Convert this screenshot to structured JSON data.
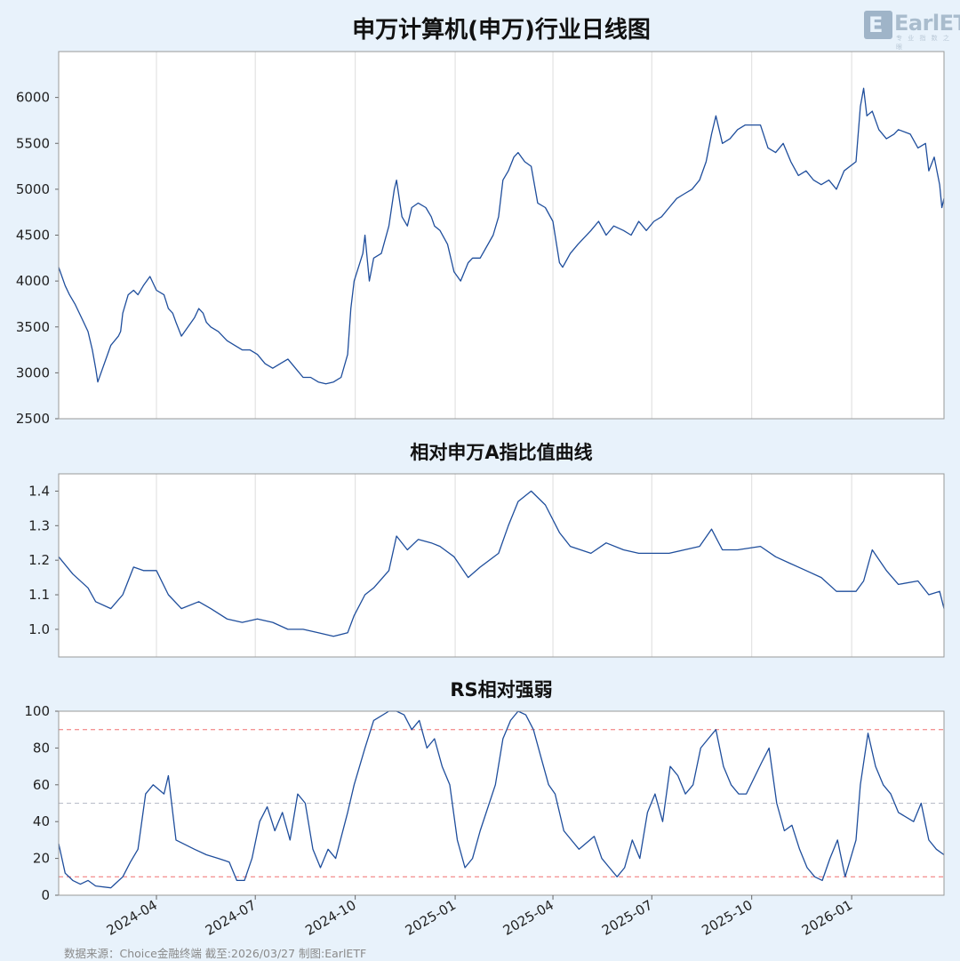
{
  "brand": {
    "logo_text": "EarlETF",
    "logo_sub": "专 业 指 数 之 眼"
  },
  "footer": {
    "text": "数据来源：Choice金融终端 截至:2026/03/27 制图:EarlETF"
  },
  "colors": {
    "background": "#e8f2fb",
    "line": "#1f4e9c",
    "threshold": "#f07070",
    "midline": "#b8bcc8",
    "grid": "#dddddd"
  },
  "x_axis": {
    "ticks": [
      "2024-04",
      "2024-07",
      "2024-10",
      "2025-01",
      "2025-04",
      "2025-07",
      "2025-10",
      "2026-01"
    ],
    "start": "2024-01-02",
    "end": "2026-03-27"
  },
  "chart_data": [
    {
      "type": "line",
      "title": "申万计算机(申万)行业日线图",
      "ylim": [
        2500,
        6500
      ],
      "yticks": [
        2500,
        3000,
        3500,
        4000,
        4500,
        5000,
        5500,
        6000
      ],
      "grid": "vertical",
      "x": [
        "2024-01-02",
        "2024-01-08",
        "2024-01-12",
        "2024-01-17",
        "2024-01-23",
        "2024-01-29",
        "2024-02-02",
        "2024-02-05",
        "2024-02-07",
        "2024-02-19",
        "2024-02-26",
        "2024-02-28",
        "2024-03-01",
        "2024-03-06",
        "2024-03-11",
        "2024-03-15",
        "2024-03-20",
        "2024-03-26",
        "2024-04-01",
        "2024-04-08",
        "2024-04-12",
        "2024-04-16",
        "2024-04-19",
        "2024-04-24",
        "2024-05-06",
        "2024-05-10",
        "2024-05-14",
        "2024-05-17",
        "2024-05-21",
        "2024-05-28",
        "2024-06-05",
        "2024-06-12",
        "2024-06-19",
        "2024-06-26",
        "2024-07-03",
        "2024-07-10",
        "2024-07-17",
        "2024-07-24",
        "2024-07-31",
        "2024-08-07",
        "2024-08-14",
        "2024-08-21",
        "2024-08-28",
        "2024-09-04",
        "2024-09-11",
        "2024-09-18",
        "2024-09-24",
        "2024-09-27",
        "2024-09-30",
        "2024-10-08",
        "2024-10-10",
        "2024-10-14",
        "2024-10-18",
        "2024-10-25",
        "2024-11-01",
        "2024-11-06",
        "2024-11-08",
        "2024-11-13",
        "2024-11-18",
        "2024-11-22",
        "2024-11-28",
        "2024-12-05",
        "2024-12-10",
        "2024-12-13",
        "2024-12-18",
        "2024-12-25",
        "2024-12-31",
        "2025-01-06",
        "2025-01-13",
        "2025-01-17",
        "2025-01-24",
        "2025-02-05",
        "2025-02-10",
        "2025-02-14",
        "2025-02-19",
        "2025-02-24",
        "2025-02-28",
        "2025-03-06",
        "2025-03-12",
        "2025-03-18",
        "2025-03-25",
        "2025-04-01",
        "2025-04-07",
        "2025-04-10",
        "2025-04-17",
        "2025-04-24",
        "2025-05-06",
        "2025-05-13",
        "2025-05-20",
        "2025-05-27",
        "2025-06-05",
        "2025-06-12",
        "2025-06-19",
        "2025-06-26",
        "2025-07-03",
        "2025-07-10",
        "2025-07-17",
        "2025-07-24",
        "2025-07-31",
        "2025-08-07",
        "2025-08-14",
        "2025-08-20",
        "2025-08-25",
        "2025-08-29",
        "2025-09-04",
        "2025-09-11",
        "2025-09-18",
        "2025-09-25",
        "2025-10-09",
        "2025-10-16",
        "2025-10-23",
        "2025-10-30",
        "2025-11-06",
        "2025-11-13",
        "2025-11-20",
        "2025-11-27",
        "2025-12-04",
        "2025-12-11",
        "2025-12-18",
        "2025-12-25",
        "2026-01-05",
        "2026-01-09",
        "2026-01-12",
        "2026-01-15",
        "2026-01-20",
        "2026-01-26",
        "2026-02-02",
        "2026-02-09",
        "2026-02-13",
        "2026-02-24",
        "2026-03-03",
        "2026-03-10",
        "2026-03-13",
        "2026-03-18",
        "2026-03-23",
        "2026-03-25",
        "2026-03-27"
      ],
      "series": [
        {
          "name": "",
          "values": [
            4150,
            3950,
            3850,
            3750,
            3600,
            3450,
            3250,
            3050,
            2900,
            3300,
            3400,
            3450,
            3650,
            3850,
            3900,
            3850,
            3950,
            4050,
            3900,
            3850,
            3700,
            3650,
            3550,
            3400,
            3600,
            3700,
            3650,
            3550,
            3500,
            3450,
            3350,
            3300,
            3250,
            3250,
            3200,
            3100,
            3050,
            3100,
            3150,
            3050,
            2950,
            2950,
            2900,
            2880,
            2900,
            2950,
            3200,
            3700,
            4000,
            4300,
            4500,
            4000,
            4250,
            4300,
            4600,
            5000,
            5100,
            4700,
            4600,
            4800,
            4850,
            4800,
            4700,
            4600,
            4550,
            4400,
            4100,
            4000,
            4200,
            4250,
            4250,
            4500,
            4700,
            5100,
            5200,
            5350,
            5400,
            5300,
            5250,
            4850,
            4800,
            4650,
            4200,
            4150,
            4300,
            4400,
            4550,
            4650,
            4500,
            4600,
            4550,
            4500,
            4650,
            4550,
            4650,
            4700,
            4800,
            4900,
            4950,
            5000,
            5100,
            5300,
            5600,
            5800,
            5500,
            5550,
            5650,
            5700,
            5700,
            5450,
            5400,
            5500,
            5300,
            5150,
            5200,
            5100,
            5050,
            5100,
            5000,
            5200,
            5300,
            5900,
            6100,
            5800,
            5850,
            5650,
            5550,
            5600,
            5650,
            5600,
            5450,
            5500,
            5200,
            5350,
            5050,
            4800,
            4900
          ]
        }
      ]
    },
    {
      "type": "line",
      "title": "相对申万A指比值曲线",
      "ylim": [
        0.92,
        1.45
      ],
      "yticks": [
        1.0,
        1.1,
        1.2,
        1.3,
        1.4
      ],
      "grid": "vertical",
      "x": [
        "2024-01-02",
        "2024-01-15",
        "2024-01-29",
        "2024-02-05",
        "2024-02-19",
        "2024-03-01",
        "2024-03-11",
        "2024-03-20",
        "2024-04-01",
        "2024-04-12",
        "2024-04-24",
        "2024-05-10",
        "2024-05-21",
        "2024-06-05",
        "2024-06-19",
        "2024-07-03",
        "2024-07-17",
        "2024-07-31",
        "2024-08-14",
        "2024-08-28",
        "2024-09-11",
        "2024-09-24",
        "2024-09-30",
        "2024-10-10",
        "2024-10-18",
        "2024-11-01",
        "2024-11-08",
        "2024-11-18",
        "2024-11-28",
        "2024-12-10",
        "2024-12-18",
        "2024-12-31",
        "2025-01-13",
        "2025-01-24",
        "2025-02-10",
        "2025-02-19",
        "2025-02-28",
        "2025-03-12",
        "2025-03-25",
        "2025-04-07",
        "2025-04-17",
        "2025-05-06",
        "2025-05-20",
        "2025-06-05",
        "2025-06-19",
        "2025-07-03",
        "2025-07-17",
        "2025-07-31",
        "2025-08-14",
        "2025-08-25",
        "2025-09-04",
        "2025-09-18",
        "2025-10-09",
        "2025-10-23",
        "2025-11-06",
        "2025-11-20",
        "2025-12-04",
        "2025-12-18",
        "2026-01-05",
        "2026-01-12",
        "2026-01-20",
        "2026-02-02",
        "2026-02-13",
        "2026-03-03",
        "2026-03-13",
        "2026-03-23",
        "2026-03-27"
      ],
      "series": [
        {
          "name": "",
          "values": [
            1.21,
            1.16,
            1.12,
            1.08,
            1.06,
            1.1,
            1.18,
            1.17,
            1.17,
            1.1,
            1.06,
            1.08,
            1.06,
            1.03,
            1.02,
            1.03,
            1.02,
            1.0,
            1.0,
            0.99,
            0.98,
            0.99,
            1.04,
            1.1,
            1.12,
            1.17,
            1.27,
            1.23,
            1.26,
            1.25,
            1.24,
            1.21,
            1.15,
            1.18,
            1.22,
            1.3,
            1.37,
            1.4,
            1.36,
            1.28,
            1.24,
            1.22,
            1.25,
            1.23,
            1.22,
            1.22,
            1.22,
            1.23,
            1.24,
            1.29,
            1.23,
            1.23,
            1.24,
            1.21,
            1.19,
            1.17,
            1.15,
            1.11,
            1.11,
            1.14,
            1.23,
            1.17,
            1.13,
            1.14,
            1.1,
            1.11,
            1.06
          ]
        }
      ]
    },
    {
      "type": "line",
      "title": "RS相对强弱",
      "ylim": [
        0,
        100
      ],
      "yticks": [
        0,
        20,
        40,
        60,
        80,
        100
      ],
      "reference_lines": [
        {
          "y": 90,
          "color": "#f07070",
          "style": "dashed"
        },
        {
          "y": 50,
          "color": "#b8bcc8",
          "style": "dashed"
        },
        {
          "y": 10,
          "color": "#f07070",
          "style": "dashed"
        }
      ],
      "x": [
        "2024-01-02",
        "2024-01-08",
        "2024-01-15",
        "2024-01-22",
        "2024-01-29",
        "2024-02-05",
        "2024-02-19",
        "2024-03-01",
        "2024-03-08",
        "2024-03-15",
        "2024-03-22",
        "2024-03-29",
        "2024-04-08",
        "2024-04-12",
        "2024-04-19",
        "2024-05-06",
        "2024-05-17",
        "2024-05-28",
        "2024-06-07",
        "2024-06-14",
        "2024-06-21",
        "2024-06-28",
        "2024-07-05",
        "2024-07-12",
        "2024-07-19",
        "2024-07-26",
        "2024-08-02",
        "2024-08-09",
        "2024-08-16",
        "2024-08-23",
        "2024-08-30",
        "2024-09-06",
        "2024-09-13",
        "2024-09-24",
        "2024-09-30",
        "2024-10-10",
        "2024-10-18",
        "2024-11-01",
        "2024-11-08",
        "2024-11-15",
        "2024-11-22",
        "2024-11-29",
        "2024-12-06",
        "2024-12-13",
        "2024-12-20",
        "2024-12-27",
        "2025-01-03",
        "2025-01-10",
        "2025-01-17",
        "2025-01-24",
        "2025-02-07",
        "2025-02-14",
        "2025-02-21",
        "2025-02-28",
        "2025-03-07",
        "2025-03-14",
        "2025-03-21",
        "2025-03-28",
        "2025-04-03",
        "2025-04-11",
        "2025-04-18",
        "2025-04-25",
        "2025-05-09",
        "2025-05-16",
        "2025-05-23",
        "2025-05-30",
        "2025-06-06",
        "2025-06-13",
        "2025-06-20",
        "2025-06-27",
        "2025-07-04",
        "2025-07-11",
        "2025-07-18",
        "2025-07-25",
        "2025-08-01",
        "2025-08-08",
        "2025-08-15",
        "2025-08-22",
        "2025-08-29",
        "2025-09-05",
        "2025-09-12",
        "2025-09-19",
        "2025-09-26",
        "2025-10-10",
        "2025-10-17",
        "2025-10-24",
        "2025-10-31",
        "2025-11-07",
        "2025-11-14",
        "2025-11-21",
        "2025-11-28",
        "2025-12-05",
        "2025-12-12",
        "2025-12-19",
        "2025-12-26",
        "2026-01-05",
        "2026-01-09",
        "2026-01-16",
        "2026-01-23",
        "2026-01-30",
        "2026-02-06",
        "2026-02-13",
        "2026-02-27",
        "2026-03-06",
        "2026-03-13",
        "2026-03-20",
        "2026-03-27"
      ],
      "series": [
        {
          "name": "",
          "values": [
            28,
            12,
            8,
            6,
            8,
            5,
            4,
            10,
            18,
            25,
            55,
            60,
            55,
            65,
            30,
            25,
            22,
            20,
            18,
            8,
            8,
            20,
            40,
            48,
            35,
            45,
            30,
            55,
            50,
            25,
            15,
            25,
            20,
            45,
            60,
            80,
            95,
            100,
            100,
            98,
            90,
            95,
            80,
            85,
            70,
            60,
            30,
            15,
            20,
            35,
            60,
            85,
            95,
            100,
            98,
            90,
            75,
            60,
            55,
            35,
            30,
            25,
            32,
            20,
            15,
            10,
            15,
            30,
            20,
            45,
            55,
            40,
            70,
            65,
            55,
            60,
            80,
            85,
            90,
            70,
            60,
            55,
            55,
            72,
            80,
            50,
            35,
            38,
            25,
            15,
            10,
            8,
            20,
            30,
            10,
            30,
            60,
            88,
            70,
            60,
            55,
            45,
            40,
            50,
            30,
            25,
            22
          ]
        }
      ]
    }
  ]
}
